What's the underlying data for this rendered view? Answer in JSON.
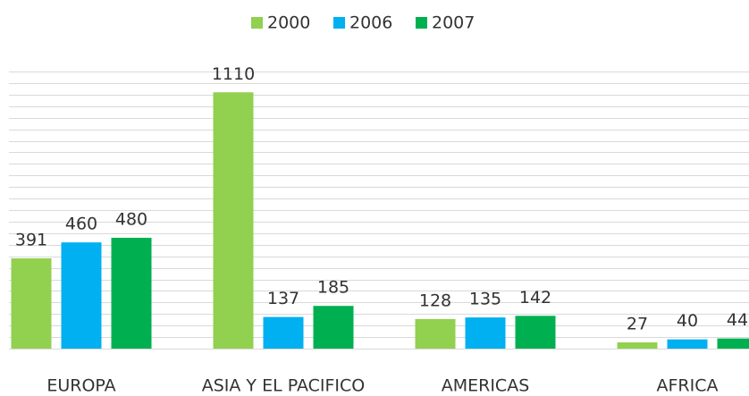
{
  "chart_data": {
    "type": "bar",
    "categories": [
      "EUROPA",
      "ASIA Y EL PACIFICO",
      "AMERICAS",
      "AFRICA"
    ],
    "series": [
      {
        "name": "2000",
        "color": "#92d050",
        "values": [
          391,
          1110,
          128,
          27
        ]
      },
      {
        "name": "2006",
        "color": "#00b0f0",
        "values": [
          460,
          137,
          135,
          40
        ]
      },
      {
        "name": "2007",
        "color": "#00b050",
        "values": [
          480,
          185,
          142,
          44
        ]
      }
    ],
    "ylim": [
      0,
      1200
    ],
    "yticks": [
      0,
      50,
      100,
      150,
      200,
      250,
      300,
      350,
      400,
      450,
      500,
      550,
      600,
      650,
      700,
      750,
      800,
      850,
      900,
      950,
      1000,
      1050,
      1100,
      1150,
      1200
    ],
    "grid": true,
    "legend": "top"
  }
}
